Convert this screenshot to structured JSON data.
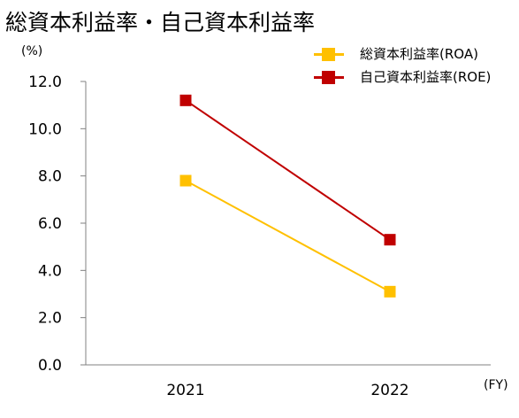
{
  "title": "総資本利益率・自己資本利益率",
  "y_unit": "(%)",
  "x_unit": "(FY)",
  "chart_data": {
    "type": "line",
    "title": "総資本利益率・自己資本利益率",
    "xlabel": "(FY)",
    "ylabel": "(%)",
    "categories": [
      "2021",
      "2022"
    ],
    "ylim": [
      0,
      12
    ],
    "yticks": [
      "0.0",
      "2.0",
      "4.0",
      "6.0",
      "8.0",
      "10.0",
      "12.0"
    ],
    "grid": false,
    "legend_position": "top-right",
    "series": [
      {
        "name": "総資本利益率(ROA)",
        "values": [
          7.8,
          3.1
        ],
        "color": "#FFC000"
      },
      {
        "name": "自己資本利益率(ROE)",
        "values": [
          11.2,
          5.3
        ],
        "color": "#C00000"
      }
    ]
  }
}
